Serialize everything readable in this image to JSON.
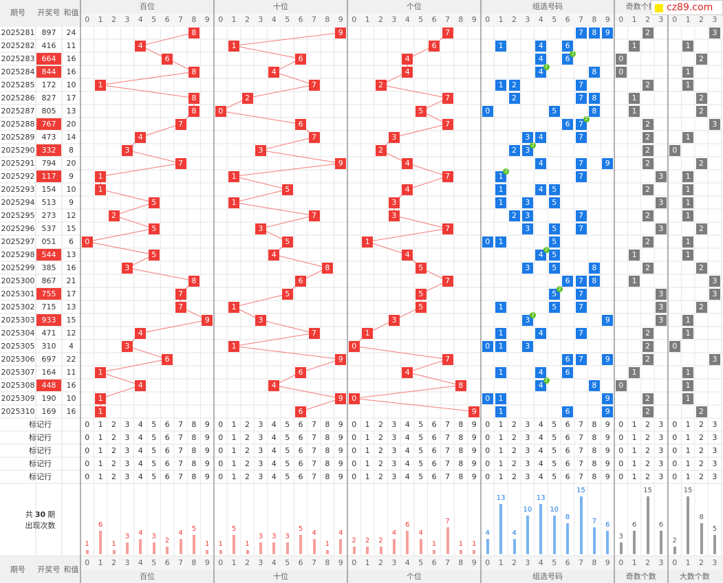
{
  "header": {
    "period": "期号",
    "draw": "开奖号",
    "sum": "和值",
    "groups": [
      "百位",
      "十位",
      "个位",
      "组选号码",
      "奇数个数",
      "大数个数"
    ]
  },
  "digits10": [
    "0",
    "1",
    "2",
    "3",
    "4",
    "5",
    "6",
    "7",
    "8",
    "9"
  ],
  "digits4": [
    "0",
    "1",
    "2",
    "3"
  ],
  "rows": [
    {
      "p": "2025281",
      "d": "897",
      "s": "24",
      "hl": false,
      "odd": 2,
      "big": 3,
      "tag": null
    },
    {
      "p": "2025282",
      "d": "416",
      "s": "11",
      "hl": false,
      "odd": 1,
      "big": 1,
      "tag": null
    },
    {
      "p": "2025283",
      "d": "664",
      "s": "16",
      "hl": true,
      "odd": 0,
      "big": 2,
      "tag": 6
    },
    {
      "p": "2025284",
      "d": "844",
      "s": "16",
      "hl": true,
      "odd": 0,
      "big": 1,
      "tag": 4
    },
    {
      "p": "2025285",
      "d": "172",
      "s": "10",
      "hl": false,
      "odd": 2,
      "big": 1,
      "tag": null
    },
    {
      "p": "2025286",
      "d": "827",
      "s": "17",
      "hl": false,
      "odd": 1,
      "big": 2,
      "tag": null
    },
    {
      "p": "2025287",
      "d": "805",
      "s": "13",
      "hl": false,
      "odd": 1,
      "big": 2,
      "tag": null
    },
    {
      "p": "2025288",
      "d": "767",
      "s": "20",
      "hl": true,
      "odd": 2,
      "big": 3,
      "tag": 7
    },
    {
      "p": "2025289",
      "d": "473",
      "s": "14",
      "hl": false,
      "odd": 2,
      "big": 1,
      "tag": null
    },
    {
      "p": "2025290",
      "d": "332",
      "s": "8",
      "hl": true,
      "odd": 2,
      "big": 0,
      "tag": 3
    },
    {
      "p": "2025291",
      "d": "794",
      "s": "20",
      "hl": false,
      "odd": 2,
      "big": 2,
      "tag": null
    },
    {
      "p": "2025292",
      "d": "117",
      "s": "9",
      "hl": true,
      "odd": 3,
      "big": 1,
      "tag": 1
    },
    {
      "p": "2025293",
      "d": "154",
      "s": "10",
      "hl": false,
      "odd": 2,
      "big": 1,
      "tag": null
    },
    {
      "p": "2025294",
      "d": "513",
      "s": "9",
      "hl": false,
      "odd": 3,
      "big": 1,
      "tag": null
    },
    {
      "p": "2025295",
      "d": "273",
      "s": "12",
      "hl": false,
      "odd": 2,
      "big": 1,
      "tag": null
    },
    {
      "p": "2025296",
      "d": "537",
      "s": "15",
      "hl": false,
      "odd": 3,
      "big": 2,
      "tag": null
    },
    {
      "p": "2025297",
      "d": "051",
      "s": "6",
      "hl": false,
      "odd": 2,
      "big": 1,
      "tag": null
    },
    {
      "p": "2025298",
      "d": "544",
      "s": "13",
      "hl": true,
      "odd": 1,
      "big": 1,
      "tag": 4
    },
    {
      "p": "2025299",
      "d": "385",
      "s": "16",
      "hl": false,
      "odd": 2,
      "big": 2,
      "tag": null
    },
    {
      "p": "2025300",
      "d": "867",
      "s": "21",
      "hl": false,
      "odd": 1,
      "big": 3,
      "tag": null
    },
    {
      "p": "2025301",
      "d": "755",
      "s": "17",
      "hl": true,
      "odd": 3,
      "big": 3,
      "tag": 5
    },
    {
      "p": "2025302",
      "d": "715",
      "s": "13",
      "hl": false,
      "odd": 3,
      "big": 2,
      "tag": null
    },
    {
      "p": "2025303",
      "d": "933",
      "s": "15",
      "hl": true,
      "odd": 3,
      "big": 1,
      "tag": 3
    },
    {
      "p": "2025304",
      "d": "471",
      "s": "12",
      "hl": false,
      "odd": 2,
      "big": 1,
      "tag": null
    },
    {
      "p": "2025305",
      "d": "310",
      "s": "4",
      "hl": false,
      "odd": 2,
      "big": 0,
      "tag": null
    },
    {
      "p": "2025306",
      "d": "697",
      "s": "22",
      "hl": false,
      "odd": 2,
      "big": 3,
      "tag": null
    },
    {
      "p": "2025307",
      "d": "164",
      "s": "11",
      "hl": false,
      "odd": 1,
      "big": 1,
      "tag": null
    },
    {
      "p": "2025308",
      "d": "448",
      "s": "16",
      "hl": true,
      "odd": 0,
      "big": 1,
      "tag": 4
    },
    {
      "p": "2025309",
      "d": "190",
      "s": "10",
      "hl": false,
      "odd": 2,
      "big": 1,
      "tag": null
    },
    {
      "p": "2025310",
      "d": "169",
      "s": "16",
      "hl": false,
      "odd": 2,
      "big": 2,
      "tag": null
    }
  ],
  "mark_label": "标记行",
  "stats": {
    "label_line1": "共",
    "label_bold": "30",
    "label_line1_tail": "期",
    "label_line2": "出现次数",
    "bai": [
      1,
      6,
      1,
      3,
      4,
      3,
      2,
      4,
      5,
      1
    ],
    "shi": [
      1,
      5,
      1,
      3,
      3,
      3,
      5,
      4,
      1,
      4
    ],
    "ge": [
      2,
      2,
      2,
      4,
      6,
      4,
      1,
      7,
      1,
      1
    ],
    "zu": [
      4,
      13,
      4,
      10,
      13,
      10,
      8,
      15,
      7,
      6
    ],
    "odd": [
      3,
      6,
      15,
      6
    ],
    "big": [
      2,
      15,
      8,
      5
    ]
  },
  "colors": {
    "red": "#ef3b36",
    "blue": "#1b7ae6",
    "gray": "#7c7c7c",
    "tag": "#57c021"
  },
  "logo": {
    "text": "cz89.com"
  }
}
